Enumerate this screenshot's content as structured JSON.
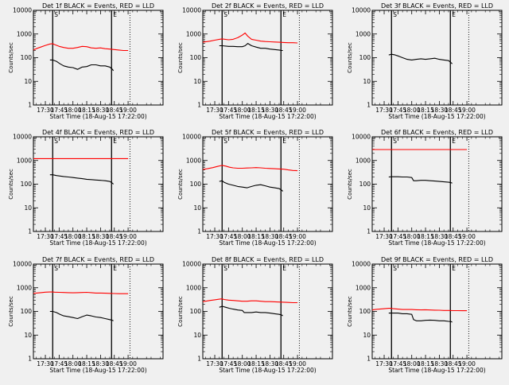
{
  "chart_data": {
    "type": "line",
    "layout": "3x3 grid",
    "y_scale": "log",
    "ylim": [
      1,
      10000
    ],
    "ytick_labels": [
      "1",
      "10",
      "100",
      "1000",
      "10000"
    ],
    "ylabel": "Counts/sec",
    "x_range_minutes": [
      17.0,
      158.0
    ],
    "xtick_labels": [
      {
        "label": "17:30",
        "minute": 30
      },
      {
        "label": "17:45",
        "minute": 45
      },
      {
        "label": "18:00",
        "minute": 60
      },
      {
        "label": "18:15",
        "minute": 75
      },
      {
        "label": "18:30",
        "minute": 90
      },
      {
        "label": "18:45",
        "minute": 105
      },
      {
        "label": "19:00",
        "minute": 120
      }
    ],
    "xlabel": "Start Time (18-Aug-15 17:22:00)",
    "series_colors": {
      "events": "#000000",
      "lld": "#ff0000"
    },
    "vertical_markers": [
      {
        "minute": 38,
        "label": "S",
        "style": "solid"
      },
      {
        "minute": 102,
        "label": "E",
        "style": "solid"
      },
      {
        "minute": 122,
        "label": "",
        "style": "dotted"
      }
    ],
    "panels": [
      {
        "title": "Det 1f BLACK = Events, RED = LLD",
        "events": {
          "x": [
            35,
            38,
            42,
            46,
            50,
            55,
            60,
            65,
            70,
            75,
            80,
            85,
            90,
            95,
            100,
            103,
            104
          ],
          "y": [
            80,
            80,
            70,
            55,
            45,
            40,
            38,
            32,
            40,
            42,
            50,
            50,
            45,
            45,
            40,
            32,
            28
          ]
        },
        "lld": {
          "x": [
            17,
            20,
            25,
            30,
            35,
            38,
            40,
            45,
            50,
            55,
            60,
            65,
            70,
            75,
            80,
            85,
            90,
            95,
            100,
            105,
            110,
            115,
            120
          ],
          "y": [
            210,
            240,
            280,
            330,
            380,
            390,
            360,
            300,
            270,
            250,
            250,
            270,
            300,
            290,
            260,
            250,
            260,
            240,
            230,
            220,
            210,
            200,
            200
          ]
        }
      },
      {
        "title": "Det 2f BLACK = Events, RED = LLD",
        "events": {
          "x": [
            35,
            38,
            45,
            50,
            55,
            60,
            63,
            66,
            70,
            75,
            80,
            85,
            90,
            95,
            100,
            103,
            104
          ],
          "y": [
            320,
            320,
            300,
            300,
            290,
            290,
            320,
            400,
            320,
            280,
            250,
            250,
            230,
            220,
            210,
            200,
            200
          ]
        },
        "lld": {
          "x": [
            17,
            25,
            30,
            35,
            38,
            45,
            50,
            55,
            60,
            63,
            66,
            70,
            75,
            80,
            85,
            90,
            95,
            100,
            105,
            110,
            115,
            120
          ],
          "y": [
            450,
            500,
            550,
            600,
            620,
            570,
            600,
            700,
            900,
            1100,
            800,
            600,
            550,
            500,
            480,
            470,
            460,
            450,
            440,
            430,
            430,
            420
          ]
        }
      },
      {
        "title": "Det 3f BLACK = Events, RED = LLD",
        "events": {
          "x": [
            35,
            38,
            42,
            46,
            50,
            55,
            60,
            65,
            70,
            75,
            80,
            85,
            90,
            95,
            100,
            103,
            104
          ],
          "y": [
            130,
            140,
            130,
            115,
            100,
            85,
            80,
            85,
            90,
            85,
            90,
            95,
            85,
            80,
            75,
            60,
            55
          ]
        }
      },
      {
        "title": "Det 4f BLACK = Events, RED = LLD",
        "events": {
          "x": [
            35,
            38,
            42,
            46,
            50,
            55,
            60,
            65,
            70,
            75,
            80,
            85,
            90,
            95,
            100,
            103,
            104
          ],
          "y": [
            250,
            250,
            230,
            220,
            210,
            200,
            190,
            180,
            170,
            160,
            155,
            150,
            145,
            140,
            130,
            110,
            100
          ]
        },
        "lld": {
          "x": [
            17,
            120
          ],
          "y": [
            1200,
            1200
          ]
        }
      },
      {
        "title": "Det 5f BLACK = Events, RED = LLD",
        "events": {
          "x": [
            35,
            38,
            40,
            45,
            50,
            55,
            60,
            65,
            70,
            75,
            80,
            85,
            90,
            95,
            100,
            103,
            104
          ],
          "y": [
            130,
            140,
            120,
            100,
            90,
            80,
            75,
            70,
            80,
            90,
            95,
            85,
            75,
            70,
            65,
            55,
            50
          ]
        },
        "lld": {
          "x": [
            17,
            22,
            28,
            33,
            38,
            42,
            46,
            50,
            55,
            60,
            65,
            70,
            75,
            80,
            85,
            90,
            95,
            100,
            105,
            110,
            115,
            120
          ],
          "y": [
            420,
            450,
            500,
            560,
            620,
            580,
            520,
            490,
            470,
            470,
            480,
            490,
            500,
            490,
            470,
            460,
            450,
            440,
            430,
            400,
            380,
            370
          ]
        }
      },
      {
        "title": "Det 6f BLACK = Events, RED = LLD",
        "events": {
          "x": [
            35,
            38,
            45,
            50,
            55,
            60,
            62,
            65,
            70,
            75,
            80,
            85,
            90,
            95,
            100,
            103,
            104
          ],
          "y": [
            200,
            205,
            205,
            200,
            200,
            190,
            140,
            140,
            145,
            145,
            140,
            135,
            130,
            125,
            120,
            115,
            110
          ]
        },
        "lld": {
          "x": [
            17,
            120
          ],
          "y": [
            2900,
            2900
          ]
        }
      },
      {
        "title": "Det 7f BLACK = Events, RED = LLD",
        "events": {
          "x": [
            35,
            38,
            42,
            46,
            50,
            55,
            60,
            65,
            70,
            75,
            80,
            85,
            90,
            95,
            100,
            103,
            104
          ],
          "y": [
            100,
            100,
            90,
            75,
            65,
            60,
            55,
            50,
            60,
            70,
            65,
            58,
            55,
            50,
            45,
            42,
            40
          ]
        },
        "lld": {
          "x": [
            17,
            20,
            25,
            30,
            35,
            38,
            40,
            45,
            50,
            55,
            60,
            65,
            70,
            75,
            80,
            85,
            90,
            95,
            100,
            105,
            110,
            115,
            120
          ],
          "y": [
            580,
            600,
            620,
            650,
            660,
            660,
            650,
            640,
            630,
            620,
            610,
            620,
            630,
            640,
            620,
            600,
            600,
            590,
            580,
            570,
            560,
            560,
            560
          ]
        }
      },
      {
        "title": "Det 8f BLACK = Events, RED = LLD",
        "events": {
          "x": [
            35,
            38,
            42,
            46,
            50,
            55,
            60,
            62,
            65,
            70,
            75,
            80,
            85,
            90,
            95,
            100,
            103,
            104
          ],
          "y": [
            150,
            165,
            150,
            135,
            125,
            115,
            110,
            90,
            90,
            90,
            95,
            90,
            90,
            85,
            80,
            75,
            70,
            65
          ]
        },
        "lld": {
          "x": [
            17,
            20,
            25,
            30,
            35,
            38,
            40,
            45,
            50,
            55,
            60,
            65,
            70,
            75,
            80,
            85,
            90,
            95,
            100,
            105,
            110,
            115,
            120
          ],
          "y": [
            260,
            270,
            290,
            310,
            330,
            340,
            320,
            300,
            290,
            280,
            270,
            270,
            280,
            280,
            270,
            260,
            260,
            255,
            250,
            245,
            240,
            235,
            235
          ]
        }
      },
      {
        "title": "Det 9f BLACK = Events, RED = LLD",
        "events": {
          "x": [
            35,
            38,
            45,
            50,
            55,
            60,
            62,
            65,
            70,
            75,
            80,
            85,
            90,
            95,
            100,
            103,
            104
          ],
          "y": [
            85,
            85,
            85,
            80,
            80,
            75,
            45,
            40,
            40,
            42,
            43,
            42,
            40,
            40,
            38,
            37,
            35
          ]
        },
        "lld": {
          "x": [
            17,
            20,
            25,
            30,
            35,
            38,
            40,
            45,
            50,
            55,
            60,
            65,
            70,
            75,
            80,
            85,
            90,
            95,
            100,
            105,
            110,
            115,
            120
          ],
          "y": [
            115,
            120,
            125,
            130,
            135,
            135,
            130,
            125,
            120,
            120,
            120,
            118,
            116,
            118,
            115,
            113,
            112,
            110,
            110,
            108,
            108,
            107,
            107
          ]
        }
      }
    ]
  }
}
